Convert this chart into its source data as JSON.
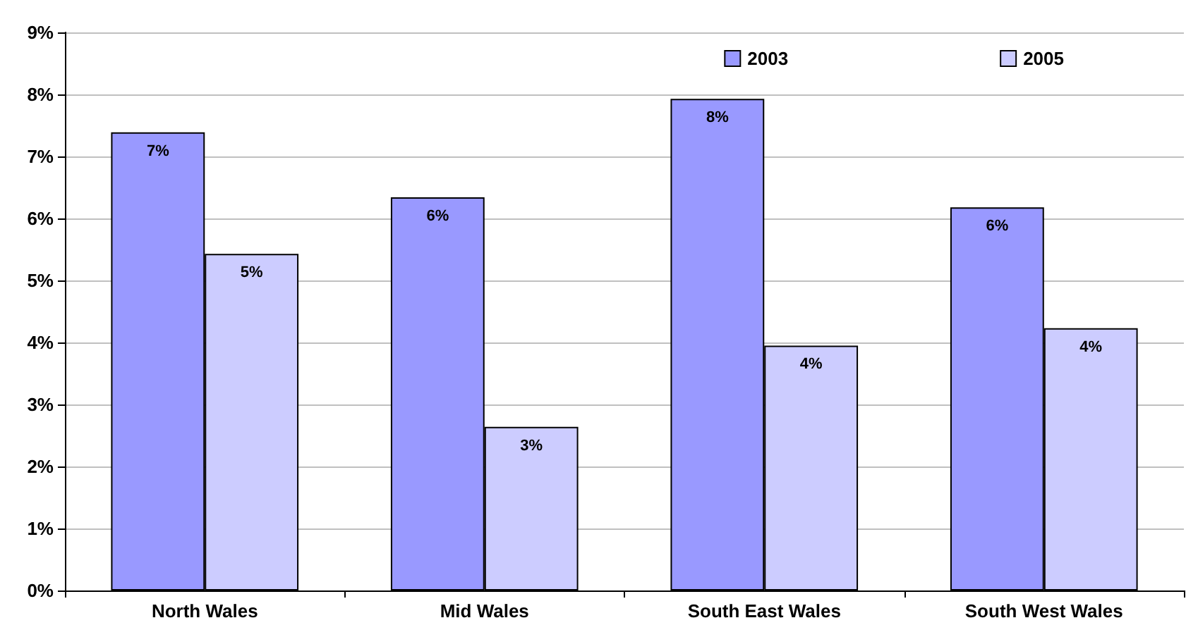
{
  "chart_data": {
    "type": "bar",
    "categories": [
      "North Wales",
      "Mid Wales",
      "South East Wales",
      "South West Wales"
    ],
    "series": [
      {
        "name": "2003",
        "color": "#9999ff",
        "values": [
          7.39,
          6.34,
          7.93,
          6.18
        ],
        "value_labels": [
          "7%",
          "6%",
          "8%",
          "6%"
        ]
      },
      {
        "name": "2005",
        "color": "#ccccff",
        "values": [
          5.43,
          2.64,
          3.95,
          4.23
        ],
        "value_labels": [
          "5%",
          "3%",
          "4%",
          "4%"
        ]
      }
    ],
    "ylim": [
      0,
      9
    ],
    "yticks": [
      {
        "value": 0,
        "label": "0%"
      },
      {
        "value": 1,
        "label": "1%"
      },
      {
        "value": 2,
        "label": "2%"
      },
      {
        "value": 3,
        "label": "3%"
      },
      {
        "value": 4,
        "label": "4%"
      },
      {
        "value": 5,
        "label": "5%"
      },
      {
        "value": 6,
        "label": "6%"
      },
      {
        "value": 7,
        "label": "7%"
      },
      {
        "value": 8,
        "label": "8%"
      },
      {
        "value": 9,
        "label": "9%"
      }
    ],
    "grid": "y",
    "legend": "top right"
  }
}
